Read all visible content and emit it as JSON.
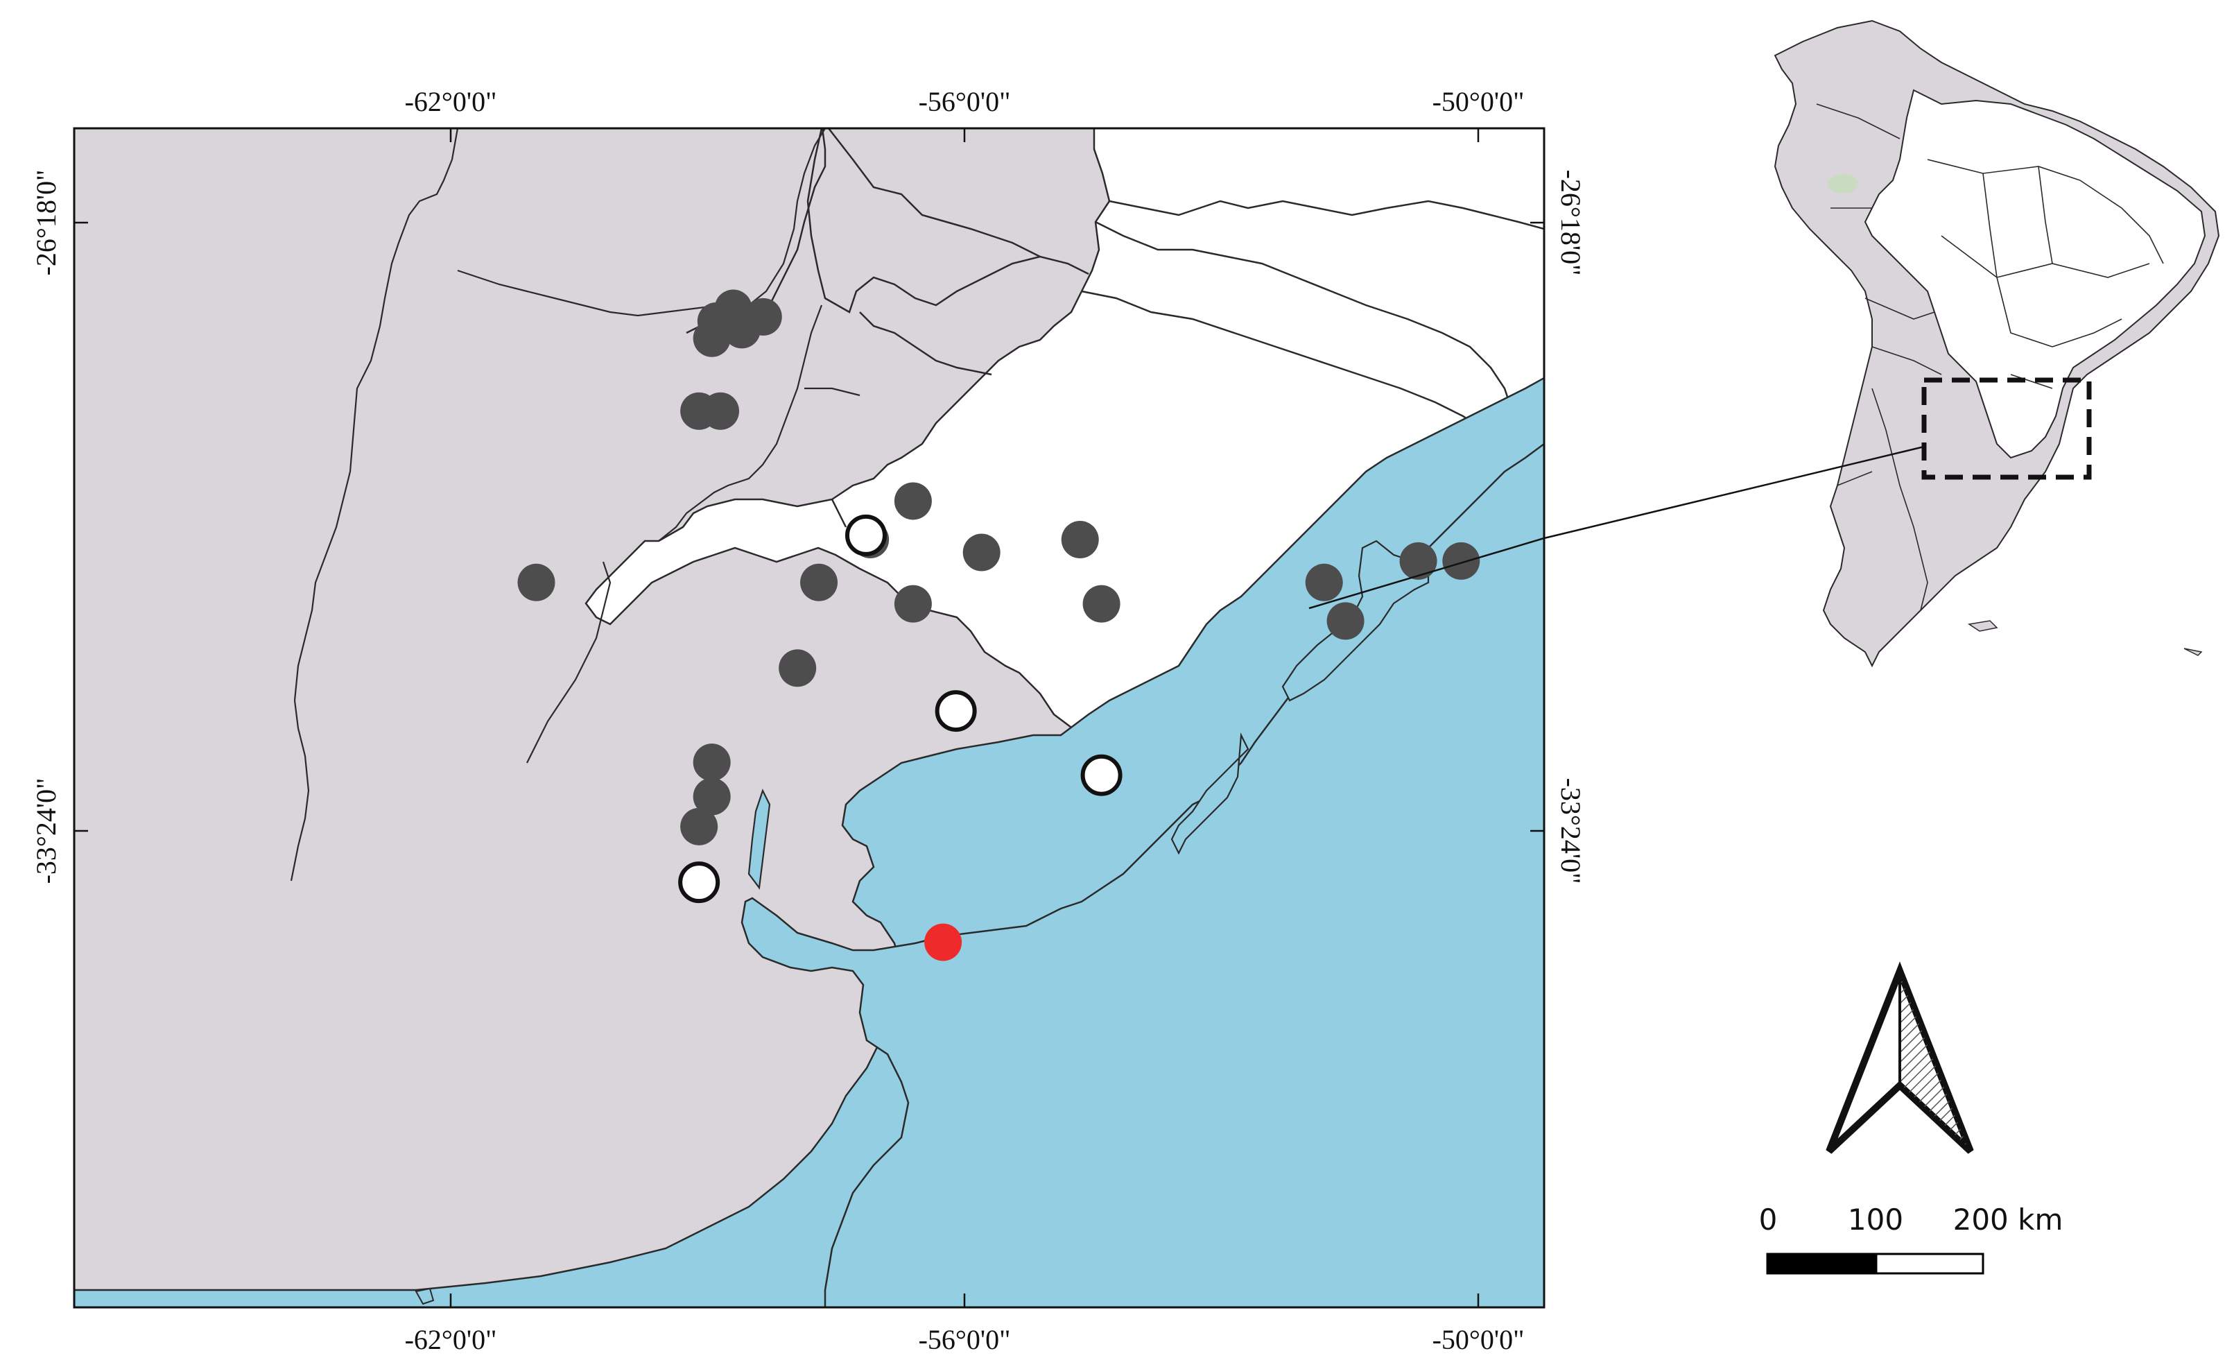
{
  "map": {
    "lon_labels": [
      "-62°0'0\"",
      "-56°0'0\"",
      "-50°0'0\""
    ],
    "lat_labels": [
      "-26°18'0\"",
      "-33°24'0\""
    ],
    "colors": {
      "land_other": "#d9d5db",
      "land_highlight": "#ffffff",
      "water": "#93cee3",
      "border": "#2a2a2a",
      "record_filled": "#4d4d4d",
      "record_open": "#ffffff",
      "type_locality": "#ee2a2a"
    },
    "points": [
      {
        "kind": "filled",
        "lon": -58.7,
        "lat": -27.3
      },
      {
        "kind": "filled",
        "lon": -58.35,
        "lat": -27.4
      },
      {
        "kind": "filled",
        "lon": -58.6,
        "lat": -27.55
      },
      {
        "kind": "filled",
        "lon": -58.9,
        "lat": -27.45
      },
      {
        "kind": "filled",
        "lon": -58.95,
        "lat": -27.65
      },
      {
        "kind": "filled",
        "lon": -59.1,
        "lat": -28.5
      },
      {
        "kind": "filled",
        "lon": -58.85,
        "lat": -28.5
      },
      {
        "kind": "filled",
        "lon": -56.6,
        "lat": -29.55
      },
      {
        "kind": "filled",
        "lon": -57.1,
        "lat": -30.0
      },
      {
        "kind": "filled",
        "lon": -55.8,
        "lat": -30.15
      },
      {
        "kind": "filled",
        "lon": -54.65,
        "lat": -30.0
      },
      {
        "kind": "filled",
        "lon": -61.0,
        "lat": -30.5
      },
      {
        "kind": "filled",
        "lon": -57.7,
        "lat": -30.5
      },
      {
        "kind": "filled",
        "lon": -56.6,
        "lat": -30.75
      },
      {
        "kind": "filled",
        "lon": -54.4,
        "lat": -30.75
      },
      {
        "kind": "filled",
        "lon": -51.8,
        "lat": -30.5
      },
      {
        "kind": "filled",
        "lon": -50.7,
        "lat": -30.25
      },
      {
        "kind": "filled",
        "lon": -50.2,
        "lat": -30.25
      },
      {
        "kind": "filled",
        "lon": -51.55,
        "lat": -30.95
      },
      {
        "kind": "filled",
        "lon": -57.95,
        "lat": -31.5
      },
      {
        "kind": "filled",
        "lon": -58.95,
        "lat": -32.6
      },
      {
        "kind": "filled",
        "lon": -58.95,
        "lat": -33.0
      },
      {
        "kind": "filled",
        "lon": -59.1,
        "lat": -33.35
      },
      {
        "kind": "open",
        "lon": -57.15,
        "lat": -29.95
      },
      {
        "kind": "open",
        "lon": -56.1,
        "lat": -32.0
      },
      {
        "kind": "open",
        "lon": -54.4,
        "lat": -32.75
      },
      {
        "kind": "open",
        "lon": -59.1,
        "lat": -34.0
      },
      {
        "kind": "type",
        "lon": -56.25,
        "lat": -34.7
      }
    ]
  },
  "inset": {
    "name": "South America locator"
  },
  "scale_bar": {
    "labels": [
      "0",
      "100",
      "200 km"
    ]
  },
  "north_arrow": {
    "icon": "north-arrow-icon"
  }
}
